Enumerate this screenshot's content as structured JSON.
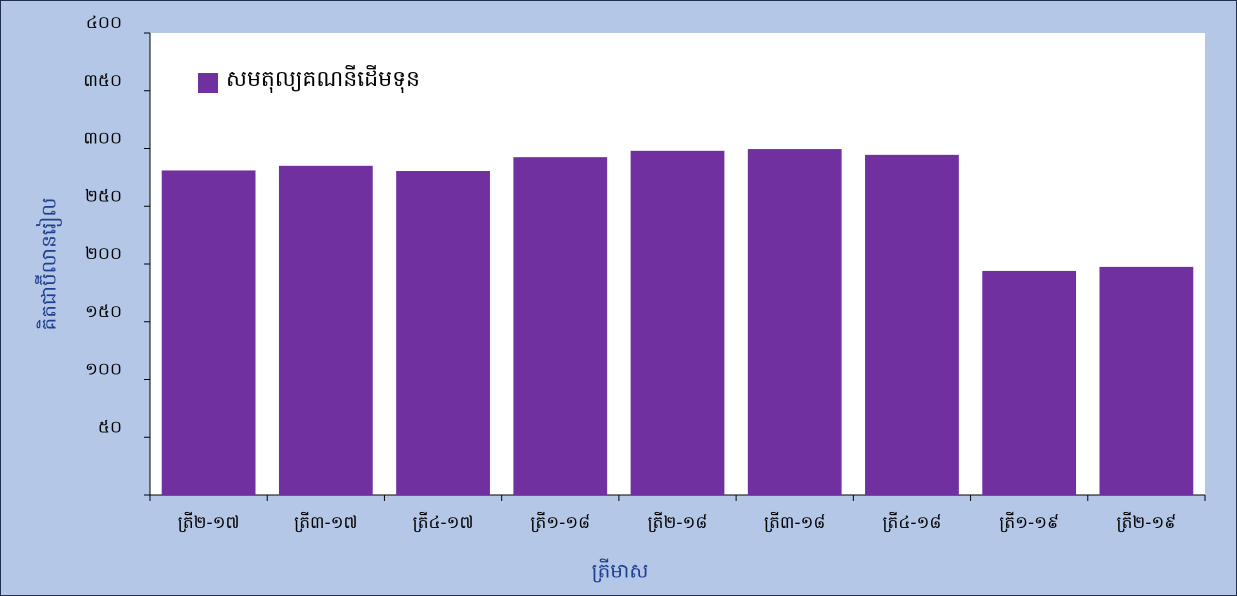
{
  "chart_data": {
    "type": "bar",
    "categories": [
      "ត្រី២-១៧",
      "ត្រី៣-១៧",
      "ត្រី៤-១៧",
      "ត្រី១-១៨",
      "ត្រី២-១៨",
      "ត្រី៣-១៨",
      "ត្រី៤-១៨",
      "ត្រី១-១៩",
      "ត្រី២-១៩"
    ],
    "series": [
      {
        "name": "សមតុល្យគណនីដើមទុន",
        "color": "#7030a0",
        "values": [
          281,
          285,
          280.5,
          292.5,
          298,
          299.5,
          294.5,
          194,
          197.5
        ]
      }
    ],
    "ylim": [
      0,
      400
    ],
    "yticks": [
      {
        "value": 50,
        "label": "៥០"
      },
      {
        "value": 100,
        "label": "១០០"
      },
      {
        "value": 150,
        "label": "១៥០"
      },
      {
        "value": 200,
        "label": "២០០"
      },
      {
        "value": 250,
        "label": "២៥០"
      },
      {
        "value": 300,
        "label": "៣០០"
      },
      {
        "value": 350,
        "label": "៣៥០"
      },
      {
        "value": 400,
        "label": "៤០០"
      }
    ],
    "y_label": "គិតជាប៊ីលានរៀល",
    "x_label": "ត្រីមាស",
    "legend": "top-left"
  }
}
